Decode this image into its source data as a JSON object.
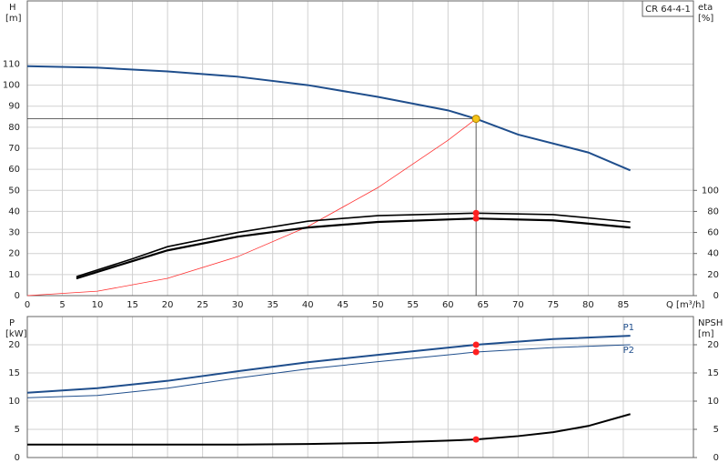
{
  "chart_data": [
    {
      "type": "line",
      "title": "CR 64-4-1",
      "y_label": "H",
      "y_unit": "[m]",
      "y2_label": "eta",
      "y2_unit": "[%]",
      "x_label": "Q [m³/h]",
      "xlim": [
        0,
        95
      ],
      "xticks": [
        0,
        5,
        10,
        15,
        20,
        25,
        30,
        35,
        40,
        45,
        50,
        55,
        60,
        65,
        70,
        75,
        80,
        85
      ],
      "ylim": [
        0,
        140
      ],
      "yticks": [
        0,
        10,
        20,
        30,
        40,
        50,
        60,
        70,
        80,
        90,
        100,
        110
      ],
      "y2lim": [
        0,
        280
      ],
      "y2ticks": [
        0,
        20,
        40,
        60,
        80,
        100
      ],
      "grid": true,
      "series": [
        {
          "color": "#1f4e8c",
          "width": 2,
          "x": [
            0,
            10,
            20,
            30,
            40,
            50,
            60,
            64,
            70,
            80,
            86
          ],
          "values": [
            109,
            108.3,
            106.5,
            104,
            100,
            94.4,
            88,
            84,
            76.5,
            68,
            59.5
          ]
        },
        {
          "color": "#ff3030",
          "width": 0.8,
          "x": [
            0,
            10,
            20,
            30,
            40,
            50,
            60,
            64
          ],
          "values": [
            0,
            2.1,
            8.2,
            18.5,
            32.8,
            51.3,
            73.8,
            84
          ]
        },
        {
          "color": "#000000",
          "width": 1.6,
          "axis": "y2",
          "x": [
            7,
            15,
            20,
            30,
            40,
            50,
            64,
            75,
            86
          ],
          "values": [
            18,
            35,
            46.5,
            60,
            70.7,
            76,
            78.4,
            77,
            70
          ]
        },
        {
          "color": "#000000",
          "width": 2.2,
          "axis": "y2",
          "x": [
            7,
            15,
            20,
            30,
            40,
            50,
            64,
            75,
            86
          ],
          "values": [
            16.4,
            32.8,
            43,
            56,
            64.7,
            70,
            73.3,
            71.5,
            64.7
          ]
        }
      ],
      "duty_point": {
        "x": 64,
        "y": 84,
        "color": "#f5c518"
      },
      "points": [
        {
          "x": 64,
          "y": 78.4,
          "axis": "y2",
          "color": "#ff2020"
        },
        {
          "x": 64,
          "y": 73.3,
          "axis": "y2",
          "color": "#ff2020"
        }
      ]
    },
    {
      "type": "line",
      "y_label": "P",
      "y_unit": "[kW]",
      "y2_label": "NPSH",
      "y2_unit": "[m]",
      "xlim": [
        0,
        95
      ],
      "xticks": [
        0,
        5,
        10,
        15,
        20,
        25,
        30,
        35,
        40,
        45,
        50,
        55,
        60,
        65,
        70,
        75,
        80,
        85
      ],
      "ylim": [
        0,
        25
      ],
      "yticks": [
        0,
        5,
        10,
        15,
        20
      ],
      "y2lim": [
        0,
        25
      ],
      "y2ticks": [
        0,
        5,
        10,
        15,
        20
      ],
      "grid": true,
      "series": [
        {
          "name": "P1",
          "color": "#1f4e8c",
          "width": 2,
          "x": [
            0,
            10,
            20,
            30,
            40,
            50,
            64,
            75,
            86
          ],
          "values": [
            11.5,
            12.3,
            13.6,
            15.3,
            16.9,
            18.2,
            20,
            21,
            21.6
          ]
        },
        {
          "name": "P2",
          "color": "#1f4e8c",
          "width": 1,
          "x": [
            0,
            10,
            20,
            30,
            40,
            50,
            64,
            75,
            86
          ],
          "values": [
            10.6,
            11,
            12.3,
            14.1,
            15.7,
            17,
            18.7,
            19.5,
            20
          ]
        },
        {
          "color": "#000000",
          "width": 2,
          "axis": "y2",
          "x": [
            0,
            30,
            40,
            50,
            60,
            64,
            70,
            75,
            80,
            86
          ],
          "values": [
            2.3,
            2.3,
            2.4,
            2.6,
            3,
            3.2,
            3.8,
            4.5,
            5.6,
            7.7
          ]
        }
      ],
      "points": [
        {
          "x": 64,
          "y": 20,
          "color": "#ff2020"
        },
        {
          "x": 64,
          "y": 18.7,
          "color": "#ff2020"
        },
        {
          "x": 64,
          "y": 3.2,
          "axis": "y2",
          "color": "#ff2020"
        }
      ]
    }
  ]
}
